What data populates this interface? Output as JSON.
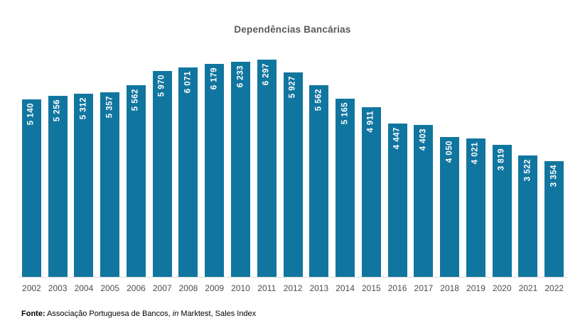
{
  "title": "Dependências Bancárias",
  "footer": {
    "label_bold": "Fonte:",
    "text_before_italic": " Associação Portuguesa de Bancos, ",
    "italic_word": "in",
    "text_after_italic": " Marktest, Sales Index"
  },
  "colors": {
    "bar": "#11769F",
    "title_text": "#595959",
    "axis_label_text": "#4d4d4d",
    "axis_line": "#d9d9d9",
    "value_label_text": "#ffffff",
    "background": "#ffffff"
  },
  "chart_data": {
    "type": "bar",
    "title": "Dependências Bancárias",
    "categories": [
      "2002",
      "2003",
      "2004",
      "2005",
      "2006",
      "2007",
      "2008",
      "2009",
      "2010",
      "2011",
      "2012",
      "2013",
      "2014",
      "2015",
      "2016",
      "2017",
      "2018",
      "2019",
      "2020",
      "2021",
      "2022"
    ],
    "values": [
      5140,
      5256,
      5312,
      5357,
      5562,
      5970,
      6071,
      6179,
      6233,
      6297,
      5927,
      5562,
      5165,
      4911,
      4447,
      4403,
      4050,
      4021,
      3819,
      3522,
      3354
    ],
    "value_labels": [
      "5 140",
      "5 256",
      "5 312",
      "5 357",
      "5 562",
      "5 970",
      "6 071",
      "6 179",
      "6 233",
      "6 297",
      "5 927",
      "5 562",
      "5 165",
      "4 911",
      "4 447",
      "4 403",
      "4 050",
      "4 021",
      "3 819",
      "3 522",
      "3 354"
    ],
    "xlabel": "",
    "ylabel": "",
    "ylim": [
      0,
      6297
    ],
    "grid": false,
    "legend": "none",
    "value_label_position": "inside-end-rotated-90",
    "source_note": "Fonte: Associação Portuguesa de Bancos, in Marktest, Sales Index"
  }
}
